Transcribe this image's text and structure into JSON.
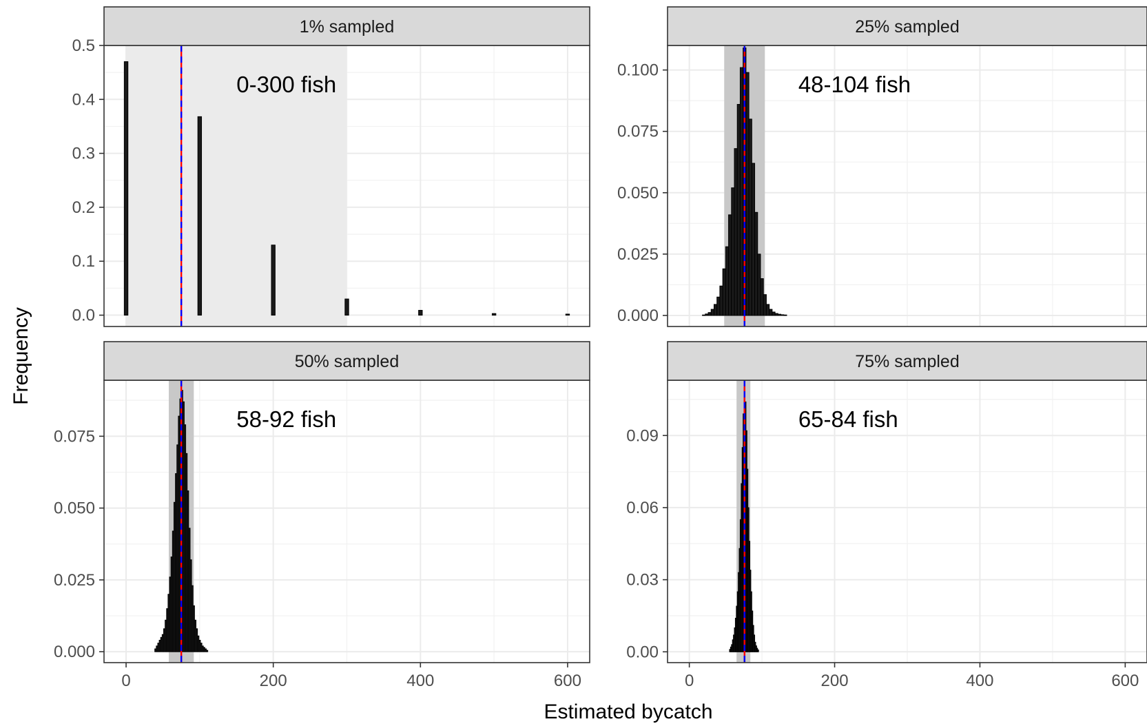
{
  "chart_data": {
    "type": "bar",
    "facet_layout": "2x2",
    "xlabel": "Estimated bycatch",
    "ylabel": "Frequency",
    "x_ticks": [
      0,
      200,
      400,
      600
    ],
    "xlim": [
      -30,
      630
    ],
    "grid": true,
    "colors": {
      "bar_fill": "#1a1a1a",
      "bar_outline": "#000000",
      "strip_fill": "#d9d9d9",
      "ci_band_light": "#ebebeb",
      "ci_band_dark": "#c8c8c8",
      "true_value_line": "#ff0000",
      "mean_line": "#0000ff"
    },
    "panels": [
      {
        "strip": "1% sampled",
        "annotation": "0-300 fish",
        "ylim": [
          -0.021,
          0.5
        ],
        "y_ticks": [
          0.0,
          0.1,
          0.2,
          0.3,
          0.4,
          0.5
        ],
        "y_tick_labels": [
          "0.0",
          "0.1",
          "0.2",
          "0.3",
          "0.4",
          "0.5"
        ],
        "interval": [
          0,
          300
        ],
        "band": "light",
        "true_value": 75,
        "mean_value": 75,
        "bar_width": 5,
        "bars": [
          {
            "x": 0,
            "y": 0.47
          },
          {
            "x": 100,
            "y": 0.368
          },
          {
            "x": 200,
            "y": 0.13
          },
          {
            "x": 300,
            "y": 0.03
          },
          {
            "x": 400,
            "y": 0.009
          },
          {
            "x": 500,
            "y": 0.003
          },
          {
            "x": 600,
            "y": 0.002
          }
        ]
      },
      {
        "strip": "25% sampled",
        "annotation": "48-104 fish",
        "ylim": [
          -0.0045,
          0.11
        ],
        "y_ticks": [
          0.0,
          0.025,
          0.05,
          0.075,
          0.1
        ],
        "y_tick_labels": [
          "0.000",
          "0.025",
          "0.050",
          "0.075",
          "0.100"
        ],
        "interval": [
          48,
          104
        ],
        "band": "dark",
        "true_value": 76,
        "mean_value": 76,
        "bar_width": 4,
        "bars": [
          {
            "x": 20,
            "y": 0.0002
          },
          {
            "x": 24,
            "y": 0.0006
          },
          {
            "x": 28,
            "y": 0.0012
          },
          {
            "x": 32,
            "y": 0.0025
          },
          {
            "x": 36,
            "y": 0.0045
          },
          {
            "x": 40,
            "y": 0.0075
          },
          {
            "x": 44,
            "y": 0.012
          },
          {
            "x": 48,
            "y": 0.019
          },
          {
            "x": 52,
            "y": 0.028
          },
          {
            "x": 56,
            "y": 0.041
          },
          {
            "x": 60,
            "y": 0.052
          },
          {
            "x": 64,
            "y": 0.068
          },
          {
            "x": 68,
            "y": 0.086
          },
          {
            "x": 72,
            "y": 0.101
          },
          {
            "x": 76,
            "y": 0.109
          },
          {
            "x": 80,
            "y": 0.099
          },
          {
            "x": 84,
            "y": 0.08
          },
          {
            "x": 88,
            "y": 0.062
          },
          {
            "x": 92,
            "y": 0.042
          },
          {
            "x": 96,
            "y": 0.025
          },
          {
            "x": 100,
            "y": 0.015
          },
          {
            "x": 104,
            "y": 0.0085
          },
          {
            "x": 108,
            "y": 0.0045
          },
          {
            "x": 112,
            "y": 0.0025
          },
          {
            "x": 116,
            "y": 0.0014
          },
          {
            "x": 120,
            "y": 0.0008
          },
          {
            "x": 124,
            "y": 0.0005
          },
          {
            "x": 128,
            "y": 0.0003
          },
          {
            "x": 132,
            "y": 0.0002
          }
        ]
      },
      {
        "strip": "50% sampled",
        "annotation": "58-92 fish",
        "ylim": [
          -0.0038,
          0.0945
        ],
        "y_ticks": [
          0.0,
          0.025,
          0.05,
          0.075
        ],
        "y_tick_labels": [
          "0.000",
          "0.025",
          "0.050",
          "0.075"
        ],
        "interval": [
          58,
          92
        ],
        "band": "dark",
        "true_value": 75,
        "mean_value": 75,
        "bar_width": 2,
        "bars": [
          {
            "x": 40,
            "y": 0.001
          },
          {
            "x": 42,
            "y": 0.002
          },
          {
            "x": 44,
            "y": 0.003
          },
          {
            "x": 46,
            "y": 0.004
          },
          {
            "x": 48,
            "y": 0.005
          },
          {
            "x": 50,
            "y": 0.006
          },
          {
            "x": 52,
            "y": 0.008
          },
          {
            "x": 54,
            "y": 0.011
          },
          {
            "x": 56,
            "y": 0.015
          },
          {
            "x": 58,
            "y": 0.02
          },
          {
            "x": 60,
            "y": 0.026
          },
          {
            "x": 62,
            "y": 0.033
          },
          {
            "x": 64,
            "y": 0.042
          },
          {
            "x": 66,
            "y": 0.052
          },
          {
            "x": 68,
            "y": 0.062
          },
          {
            "x": 70,
            "y": 0.072
          },
          {
            "x": 72,
            "y": 0.082
          },
          {
            "x": 74,
            "y": 0.088
          },
          {
            "x": 76,
            "y": 0.091
          },
          {
            "x": 78,
            "y": 0.087
          },
          {
            "x": 80,
            "y": 0.079
          },
          {
            "x": 82,
            "y": 0.069
          },
          {
            "x": 84,
            "y": 0.056
          },
          {
            "x": 86,
            "y": 0.043
          },
          {
            "x": 88,
            "y": 0.032
          },
          {
            "x": 90,
            "y": 0.023
          },
          {
            "x": 92,
            "y": 0.016
          },
          {
            "x": 94,
            "y": 0.011
          },
          {
            "x": 96,
            "y": 0.008
          },
          {
            "x": 98,
            "y": 0.0055
          },
          {
            "x": 100,
            "y": 0.004
          },
          {
            "x": 102,
            "y": 0.003
          },
          {
            "x": 104,
            "y": 0.002
          },
          {
            "x": 106,
            "y": 0.0015
          },
          {
            "x": 108,
            "y": 0.001
          },
          {
            "x": 110,
            "y": 0.0005
          }
        ]
      },
      {
        "strip": "75% sampled",
        "annotation": "65-84 fish",
        "ylim": [
          -0.0045,
          0.113
        ],
        "y_ticks": [
          0.0,
          0.03,
          0.06,
          0.09
        ],
        "y_tick_labels": [
          "0.00",
          "0.03",
          "0.06",
          "0.09"
        ],
        "interval": [
          65,
          84
        ],
        "band": "dark",
        "true_value": 76,
        "mean_value": 76,
        "bar_width": 1.33,
        "bars": [
          {
            "x": 56,
            "y": 0.001
          },
          {
            "x": 57.33,
            "y": 0.002
          },
          {
            "x": 58.67,
            "y": 0.003
          },
          {
            "x": 60,
            "y": 0.005
          },
          {
            "x": 61.33,
            "y": 0.007
          },
          {
            "x": 62.67,
            "y": 0.01
          },
          {
            "x": 64,
            "y": 0.014
          },
          {
            "x": 65.33,
            "y": 0.019
          },
          {
            "x": 66.67,
            "y": 0.025
          },
          {
            "x": 68,
            "y": 0.033
          },
          {
            "x": 69.33,
            "y": 0.043
          },
          {
            "x": 70.67,
            "y": 0.055
          },
          {
            "x": 72,
            "y": 0.07
          },
          {
            "x": 73.33,
            "y": 0.085
          },
          {
            "x": 74.67,
            "y": 0.099
          },
          {
            "x": 76,
            "y": 0.11
          },
          {
            "x": 77.33,
            "y": 0.104
          },
          {
            "x": 78.67,
            "y": 0.092
          },
          {
            "x": 80,
            "y": 0.076
          },
          {
            "x": 81.33,
            "y": 0.06
          },
          {
            "x": 82.67,
            "y": 0.046
          },
          {
            "x": 84,
            "y": 0.034
          },
          {
            "x": 85.33,
            "y": 0.025
          },
          {
            "x": 86.67,
            "y": 0.017
          },
          {
            "x": 88,
            "y": 0.011
          },
          {
            "x": 89.33,
            "y": 0.007
          },
          {
            "x": 90.67,
            "y": 0.004
          },
          {
            "x": 92,
            "y": 0.0025
          },
          {
            "x": 93.33,
            "y": 0.0015
          },
          {
            "x": 94.67,
            "y": 0.0008
          }
        ]
      }
    ]
  }
}
